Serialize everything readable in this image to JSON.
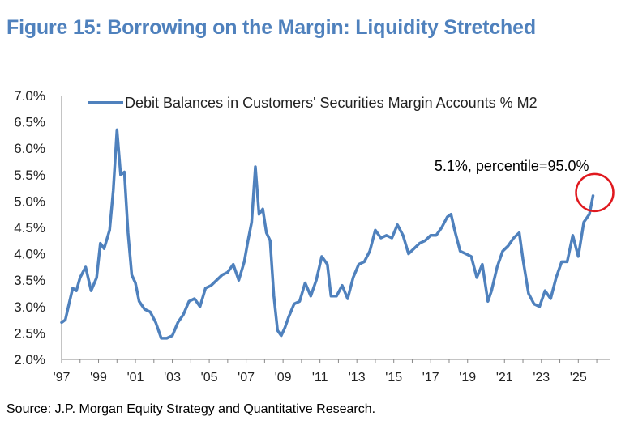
{
  "figure_title": "Figure 15: Borrowing on the Margin: Liquidity Stretched",
  "source": "Source: J.P. Morgan Equity Strategy and Quantitative Research.",
  "colors": {
    "title": "#4f81bd",
    "series": "#4f81bd",
    "circle": "#e0191f"
  },
  "chart_data": {
    "type": "line",
    "title": "",
    "xlabel": "",
    "ylabel": "",
    "ylim": [
      2.0,
      7.0
    ],
    "xlim": [
      1997,
      2026.7
    ],
    "y_ticks": [
      "7.0%",
      "6.5%",
      "6.0%",
      "5.5%",
      "5.0%",
      "4.5%",
      "4.0%",
      "3.5%",
      "3.0%",
      "2.5%",
      "2.0%"
    ],
    "y_tick_values": [
      7.0,
      6.5,
      6.0,
      5.5,
      5.0,
      4.5,
      4.0,
      3.5,
      3.0,
      2.5,
      2.0
    ],
    "x_ticks": [
      "'97",
      "'99",
      "'01",
      "'03",
      "'05",
      "'07",
      "'09",
      "'11",
      "'13",
      "'15",
      "'17",
      "'19",
      "'21",
      "'23",
      "'25"
    ],
    "x_tick_values": [
      1997,
      1999,
      2001,
      2003,
      2005,
      2007,
      2009,
      2011,
      2013,
      2015,
      2017,
      2019,
      2021,
      2023,
      2025
    ],
    "legend": "top-left",
    "grid": false,
    "series": [
      {
        "name": "Debit Balances in Customers' Securities Margin Accounts % M2",
        "x": [
          1997.0,
          1997.2,
          1997.4,
          1997.6,
          1997.8,
          1998.0,
          1998.3,
          1998.6,
          1998.9,
          1999.1,
          1999.3,
          1999.6,
          1999.8,
          2000.0,
          2000.2,
          2000.4,
          2000.6,
          2000.8,
          2001.0,
          2001.2,
          2001.5,
          2001.8,
          2002.1,
          2002.4,
          2002.7,
          2003.0,
          2003.3,
          2003.6,
          2003.9,
          2004.2,
          2004.5,
          2004.8,
          2005.1,
          2005.4,
          2005.7,
          2006.0,
          2006.3,
          2006.6,
          2006.9,
          2007.1,
          2007.3,
          2007.5,
          2007.7,
          2007.9,
          2008.1,
          2008.3,
          2008.5,
          2008.7,
          2008.9,
          2009.1,
          2009.3,
          2009.6,
          2009.9,
          2010.2,
          2010.5,
          2010.8,
          2011.1,
          2011.4,
          2011.6,
          2011.9,
          2012.2,
          2012.5,
          2012.8,
          2013.1,
          2013.4,
          2013.7,
          2014.0,
          2014.3,
          2014.6,
          2014.9,
          2015.2,
          2015.5,
          2015.8,
          2016.1,
          2016.4,
          2016.7,
          2017.0,
          2017.3,
          2017.6,
          2017.9,
          2018.1,
          2018.3,
          2018.6,
          2018.9,
          2019.2,
          2019.5,
          2019.8,
          2020.1,
          2020.3,
          2020.6,
          2020.9,
          2021.2,
          2021.5,
          2021.8,
          2022.0,
          2022.3,
          2022.6,
          2022.9,
          2023.2,
          2023.5,
          2023.8,
          2024.1,
          2024.4,
          2024.7,
          2025.0,
          2025.3,
          2025.6,
          2025.8
        ],
        "values": [
          2.7,
          2.75,
          3.05,
          3.35,
          3.3,
          3.55,
          3.75,
          3.3,
          3.55,
          4.2,
          4.1,
          4.45,
          5.2,
          6.35,
          5.5,
          5.55,
          4.4,
          3.6,
          3.45,
          3.1,
          2.95,
          2.9,
          2.7,
          2.4,
          2.4,
          2.45,
          2.7,
          2.85,
          3.1,
          3.15,
          3.0,
          3.35,
          3.4,
          3.5,
          3.6,
          3.65,
          3.8,
          3.5,
          3.85,
          4.25,
          4.6,
          5.65,
          4.75,
          4.85,
          4.4,
          4.25,
          3.2,
          2.55,
          2.45,
          2.6,
          2.8,
          3.05,
          3.1,
          3.45,
          3.2,
          3.5,
          3.95,
          3.8,
          3.2,
          3.2,
          3.4,
          3.15,
          3.55,
          3.8,
          3.85,
          4.05,
          4.45,
          4.3,
          4.35,
          4.3,
          4.55,
          4.35,
          4.0,
          4.1,
          4.2,
          4.25,
          4.35,
          4.35,
          4.5,
          4.7,
          4.75,
          4.45,
          4.05,
          4.0,
          3.95,
          3.55,
          3.8,
          3.1,
          3.3,
          3.75,
          4.05,
          4.15,
          4.3,
          4.4,
          3.9,
          3.25,
          3.05,
          3.0,
          3.3,
          3.15,
          3.55,
          3.85,
          3.85,
          4.35,
          3.95,
          4.6,
          4.75,
          5.1
        ]
      }
    ],
    "annotations": [
      {
        "text": "5.1%, percentile=95.0%",
        "x": 2025.8,
        "y": 5.1
      }
    ]
  }
}
